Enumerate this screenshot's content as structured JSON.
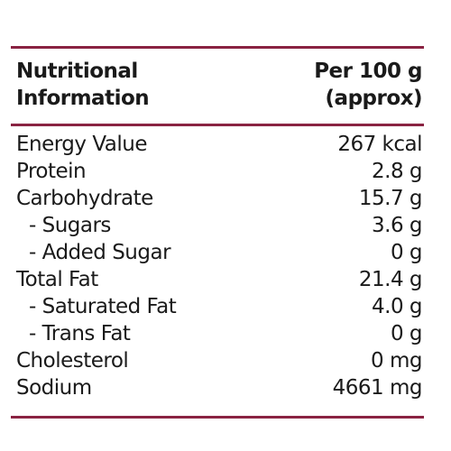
{
  "header": {
    "left": [
      "Nutritional",
      "Information"
    ],
    "right": [
      "Per 100 g",
      "(approx)"
    ]
  },
  "rows": [
    [
      "Energy Value",
      "267 kcal"
    ],
    [
      "Protein",
      "2.8 g"
    ],
    [
      "Carbohydrate",
      "15.7 g"
    ],
    [
      "- Sugars",
      "3.6 g"
    ],
    [
      "- Added Sugar",
      "0 g"
    ],
    [
      "Total Fat",
      "21.4 g"
    ],
    [
      "- Saturated Fat",
      "4.0 g"
    ],
    [
      "- Trans Fat",
      "0 g"
    ],
    [
      "Cholesterol",
      "0 mg"
    ],
    [
      "Sodium",
      "4661 mg"
    ]
  ]
}
